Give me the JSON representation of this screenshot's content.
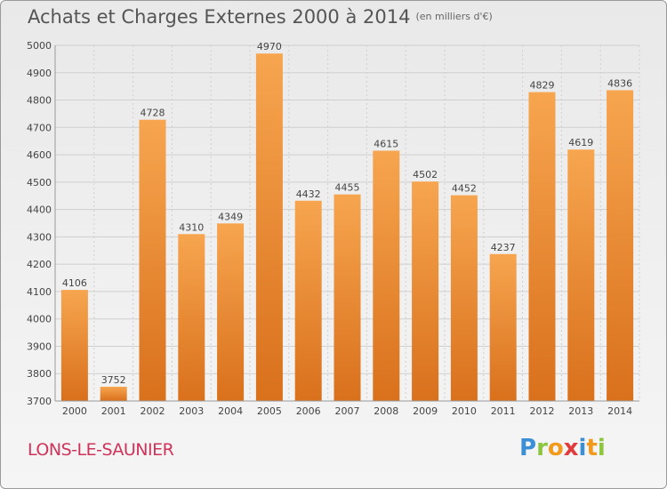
{
  "title": "Achats et Charges Externes 2000 à 2014",
  "subtitle": "(en milliers d'€)",
  "city": "LONS-LE-SAUNIER",
  "logo": {
    "letters": [
      "P",
      "r",
      "o",
      "x",
      "i",
      "t",
      "i"
    ],
    "colors": [
      "#3b8fd6",
      "#8cc63f",
      "#f29a1d",
      "#e23b3b",
      "#3b8fd6",
      "#f29a1d",
      "#8cc63f"
    ]
  },
  "colors": {
    "bar_light": "#f7a54f",
    "bar_dark": "#d9701c",
    "grid": "#cfcfcf",
    "axis_text": "#444444",
    "label_text": "#444444",
    "city": "#d0335a"
  },
  "chart_data": {
    "type": "bar",
    "categories": [
      "2000",
      "2001",
      "2002",
      "2003",
      "2004",
      "2005",
      "2006",
      "2007",
      "2008",
      "2009",
      "2010",
      "2011",
      "2012",
      "2013",
      "2014"
    ],
    "values": [
      4106,
      3752,
      4728,
      4310,
      4349,
      4970,
      4432,
      4455,
      4615,
      4502,
      4452,
      4237,
      4829,
      4619,
      4836
    ],
    "ylim": [
      3700,
      5000
    ],
    "yticks": [
      3700,
      3800,
      3900,
      4000,
      4100,
      4200,
      4300,
      4400,
      4500,
      4600,
      4700,
      4800,
      4900,
      5000
    ],
    "grid": true
  }
}
